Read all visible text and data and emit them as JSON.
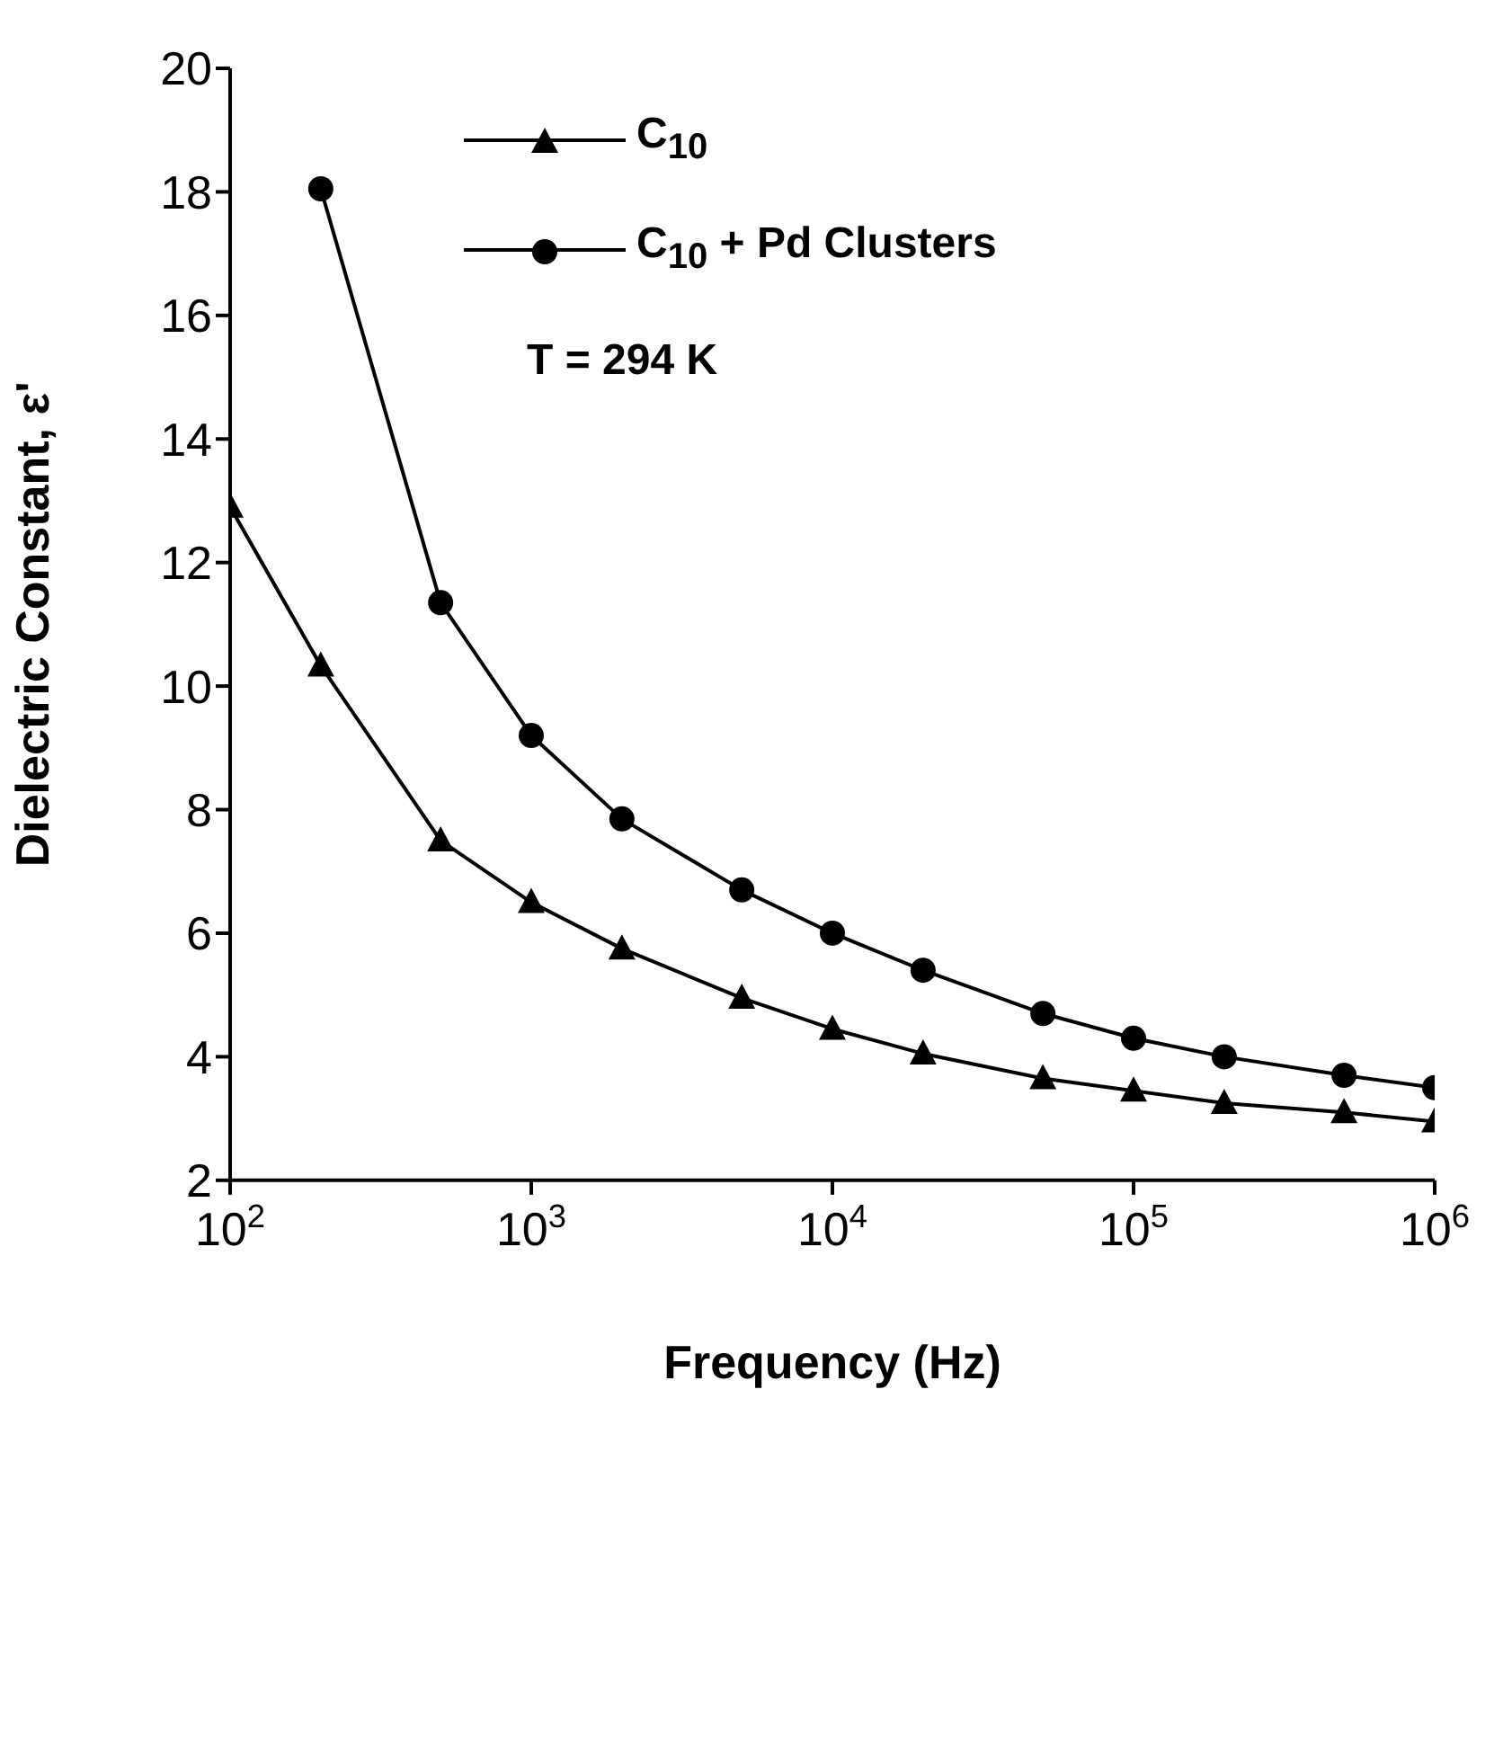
{
  "chart_data": {
    "type": "line",
    "xlabel": "Frequency (Hz)",
    "ylabel": "Dielectric Constant, ε'",
    "log": "x",
    "xlim": [
      100,
      1000000
    ],
    "xticks": [
      {
        "value": 100,
        "label": "10$^{2}$"
      },
      {
        "value": 1000,
        "label": "10$^{3}$"
      },
      {
        "value": 10000,
        "label": "10$^{4}$"
      },
      {
        "value": 100000,
        "label": "10$^{5}$"
      },
      {
        "value": 1000000,
        "label": "10$^{6}$"
      }
    ],
    "ylim": [
      2,
      20
    ],
    "yticks": [
      2,
      4,
      6,
      8,
      10,
      12,
      14,
      16,
      18,
      20
    ],
    "grid": false,
    "legend": "top left",
    "line_style": "solid",
    "annotations": [
      "T = 294 K"
    ],
    "series": [
      {
        "name": "C$_{10}$",
        "color": "#000000",
        "marker": "triangle",
        "x": [
          100,
          200,
          500,
          1000,
          2000,
          5000,
          10000,
          20000,
          50000,
          100000,
          200000,
          500000,
          1000000
        ],
        "values": [
          12.9,
          10.33,
          7.5,
          6.5,
          5.75,
          4.95,
          4.45,
          4.05,
          3.65,
          3.45,
          3.25,
          3.1,
          2.95
        ]
      },
      {
        "name": "C$_{10}$ + Pd Clusters",
        "color": "#000000",
        "marker": "circle",
        "x": [
          200,
          500,
          1000,
          2000,
          5000,
          10000,
          20000,
          50000,
          100000,
          200000,
          500000,
          1000000
        ],
        "values": [
          18.05,
          11.35,
          9.2,
          7.85,
          6.7,
          6.0,
          5.4,
          4.7,
          4.3,
          4.0,
          3.7,
          3.5
        ]
      }
    ]
  }
}
